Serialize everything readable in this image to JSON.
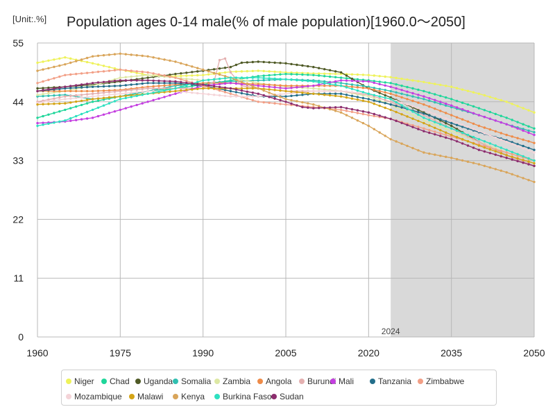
{
  "header": {
    "unit": "[Unit:.%]",
    "title": "Population ages 0-14 male(% of male population)[1960.0～2050]"
  },
  "chart_data": {
    "type": "line",
    "title": "Population ages 0-14 male(% of male population)[1960.0～2050]",
    "unit": "%",
    "xlim": [
      1960,
      2050
    ],
    "ylim": [
      0,
      55
    ],
    "x_ticks": [
      1960,
      1975,
      1990,
      2005,
      2020,
      2035,
      2050
    ],
    "y_ticks": [
      0,
      11,
      22,
      33,
      44,
      55
    ],
    "grid": true,
    "projection_start": 2024,
    "projection_label": "2024",
    "projection_shading_color": "#d9d9d9",
    "series": [
      {
        "name": "Niger",
        "color": "#eef25a",
        "points": [
          [
            1960,
            51.3
          ],
          [
            1965,
            52.3
          ],
          [
            1970,
            51.2
          ],
          [
            1975,
            50.0
          ],
          [
            1980,
            49.0
          ],
          [
            1985,
            48.8
          ],
          [
            1990,
            49.0
          ],
          [
            1995,
            49.6
          ],
          [
            2000,
            49.8
          ],
          [
            2005,
            49.5
          ],
          [
            2010,
            49.3
          ],
          [
            2015,
            49.2
          ],
          [
            2020,
            49.0
          ],
          [
            2024,
            48.6
          ],
          [
            2030,
            47.7
          ],
          [
            2035,
            46.8
          ],
          [
            2040,
            45.5
          ],
          [
            2045,
            44.0
          ],
          [
            2050,
            42.0
          ]
        ]
      },
      {
        "name": "Chad",
        "color": "#1fd69a",
        "points": [
          [
            1960,
            41.0
          ],
          [
            1965,
            42.5
          ],
          [
            1970,
            44.0
          ],
          [
            1975,
            45.0
          ],
          [
            1980,
            46.0
          ],
          [
            1985,
            46.5
          ],
          [
            1990,
            47.2
          ],
          [
            1995,
            48.0
          ],
          [
            2000,
            48.8
          ],
          [
            2005,
            49.2
          ],
          [
            2010,
            49.0
          ],
          [
            2015,
            48.5
          ],
          [
            2020,
            48.0
          ],
          [
            2024,
            47.5
          ],
          [
            2030,
            46.0
          ],
          [
            2035,
            44.5
          ],
          [
            2040,
            42.8
          ],
          [
            2045,
            41.0
          ],
          [
            2050,
            39.0
          ]
        ]
      },
      {
        "name": "Uganda",
        "color": "#4f5a26",
        "points": [
          [
            1960,
            46.5
          ],
          [
            1965,
            46.8
          ],
          [
            1970,
            47.2
          ],
          [
            1975,
            47.8
          ],
          [
            1980,
            48.5
          ],
          [
            1985,
            49.2
          ],
          [
            1990,
            49.8
          ],
          [
            1995,
            50.5
          ],
          [
            1997,
            51.3
          ],
          [
            2000,
            51.5
          ],
          [
            2005,
            51.2
          ],
          [
            2010,
            50.5
          ],
          [
            2015,
            49.5
          ],
          [
            2020,
            46.5
          ],
          [
            2024,
            44.8
          ],
          [
            2030,
            42.0
          ],
          [
            2035,
            39.5
          ],
          [
            2040,
            36.5
          ],
          [
            2045,
            34.0
          ],
          [
            2050,
            32.0
          ]
        ]
      },
      {
        "name": "Somalia",
        "color": "#30bfb0",
        "points": [
          [
            1960,
            45.0
          ],
          [
            1965,
            45.3
          ],
          [
            1970,
            44.5
          ],
          [
            1975,
            45.0
          ],
          [
            1980,
            46.0
          ],
          [
            1985,
            47.0
          ],
          [
            1990,
            47.5
          ],
          [
            1995,
            47.8
          ],
          [
            2000,
            48.0
          ],
          [
            2005,
            48.2
          ],
          [
            2010,
            48.0
          ],
          [
            2015,
            47.5
          ],
          [
            2020,
            46.8
          ],
          [
            2024,
            46.0
          ],
          [
            2030,
            44.5
          ],
          [
            2035,
            43.0
          ],
          [
            2040,
            41.5
          ],
          [
            2045,
            39.8
          ],
          [
            2050,
            38.3
          ]
        ]
      },
      {
        "name": "Zambia",
        "color": "#dde8a4",
        "points": [
          [
            1960,
            45.3
          ],
          [
            1965,
            46.0
          ],
          [
            1970,
            47.0
          ],
          [
            1975,
            48.5
          ],
          [
            1980,
            49.0
          ],
          [
            1985,
            48.5
          ],
          [
            1990,
            48.0
          ],
          [
            1995,
            48.5
          ],
          [
            2000,
            47.5
          ],
          [
            2005,
            46.8
          ],
          [
            2010,
            46.5
          ],
          [
            2015,
            46.0
          ],
          [
            2020,
            45.0
          ],
          [
            2024,
            43.5
          ],
          [
            2030,
            40.5
          ],
          [
            2035,
            38.5
          ],
          [
            2040,
            36.5
          ],
          [
            2045,
            34.5
          ],
          [
            2050,
            33.0
          ]
        ]
      },
      {
        "name": "Angola",
        "color": "#ee8b48",
        "points": [
          [
            1960,
            46.0
          ],
          [
            1965,
            46.0
          ],
          [
            1970,
            46.0
          ],
          [
            1975,
            46.2
          ],
          [
            1980,
            46.8
          ],
          [
            1985,
            47.2
          ],
          [
            1990,
            47.5
          ],
          [
            1995,
            47.5
          ],
          [
            2000,
            47.3
          ],
          [
            2005,
            47.0
          ],
          [
            2010,
            47.0
          ],
          [
            2015,
            47.0
          ],
          [
            2020,
            46.5
          ],
          [
            2024,
            45.5
          ],
          [
            2030,
            43.5
          ],
          [
            2035,
            41.5
          ],
          [
            2040,
            39.5
          ],
          [
            2045,
            37.8
          ],
          [
            2050,
            36.3
          ]
        ]
      },
      {
        "name": "Burundi",
        "color": "#e4b0b0",
        "points": [
          [
            1960,
            44.0
          ],
          [
            1965,
            45.0
          ],
          [
            1970,
            45.5
          ],
          [
            1975,
            46.0
          ],
          [
            1980,
            46.5
          ],
          [
            1985,
            46.5
          ],
          [
            1990,
            46.5
          ],
          [
            1992,
            47.8
          ],
          [
            1993,
            51.8
          ],
          [
            1994,
            52.1
          ],
          [
            1995,
            49.5
          ],
          [
            1997,
            47.0
          ],
          [
            2000,
            46.5
          ],
          [
            2005,
            46.0
          ],
          [
            2010,
            46.0
          ],
          [
            2015,
            46.0
          ],
          [
            2020,
            45.3
          ],
          [
            2024,
            44.0
          ],
          [
            2030,
            41.5
          ],
          [
            2035,
            39.0
          ],
          [
            2040,
            36.5
          ],
          [
            2045,
            34.0
          ],
          [
            2050,
            32.0
          ]
        ]
      },
      {
        "name": "Mali",
        "color": "#c43ee0",
        "points": [
          [
            1960,
            40.0
          ],
          [
            1965,
            40.3
          ],
          [
            1970,
            41.0
          ],
          [
            1975,
            42.5
          ],
          [
            1980,
            44.0
          ],
          [
            1985,
            45.5
          ],
          [
            1990,
            47.0
          ],
          [
            1995,
            47.5
          ],
          [
            2000,
            47.0
          ],
          [
            2005,
            46.5
          ],
          [
            2010,
            47.0
          ],
          [
            2015,
            48.0
          ],
          [
            2020,
            47.8
          ],
          [
            2024,
            46.8
          ],
          [
            2030,
            45.0
          ],
          [
            2035,
            43.3
          ],
          [
            2040,
            41.5
          ],
          [
            2045,
            39.8
          ],
          [
            2050,
            37.8
          ]
        ]
      },
      {
        "name": "Tanzania",
        "color": "#236e8a",
        "points": [
          [
            1960,
            46.0
          ],
          [
            1965,
            46.5
          ],
          [
            1970,
            46.8
          ],
          [
            1975,
            47.0
          ],
          [
            1980,
            47.5
          ],
          [
            1985,
            47.5
          ],
          [
            1990,
            47.0
          ],
          [
            1995,
            46.0
          ],
          [
            2000,
            45.0
          ],
          [
            2005,
            45.0
          ],
          [
            2010,
            45.5
          ],
          [
            2015,
            45.5
          ],
          [
            2020,
            44.5
          ],
          [
            2024,
            43.5
          ],
          [
            2030,
            41.8
          ],
          [
            2035,
            40.0
          ],
          [
            2040,
            38.3
          ],
          [
            2045,
            36.8
          ],
          [
            2050,
            35.0
          ]
        ]
      },
      {
        "name": "Zimbabwe",
        "color": "#f29f86",
        "points": [
          [
            1960,
            47.5
          ],
          [
            1965,
            49.0
          ],
          [
            1970,
            49.5
          ],
          [
            1975,
            50.0
          ],
          [
            1980,
            49.5
          ],
          [
            1985,
            48.5
          ],
          [
            1990,
            47.0
          ],
          [
            1995,
            45.5
          ],
          [
            2000,
            44.0
          ],
          [
            2005,
            43.5
          ],
          [
            2010,
            43.0
          ],
          [
            2015,
            42.5
          ],
          [
            2020,
            41.5
          ],
          [
            2024,
            40.8
          ],
          [
            2030,
            39.0
          ],
          [
            2035,
            37.5
          ],
          [
            2040,
            36.0
          ],
          [
            2045,
            34.5
          ],
          [
            2050,
            33.0
          ]
        ]
      },
      {
        "name": "Mozambique",
        "color": "#f4d4d8",
        "points": [
          [
            1960,
            43.8
          ],
          [
            1965,
            44.5
          ],
          [
            1970,
            45.0
          ],
          [
            1975,
            45.5
          ],
          [
            1980,
            46.0
          ],
          [
            1985,
            46.0
          ],
          [
            1990,
            45.5
          ],
          [
            1995,
            45.0
          ],
          [
            2000,
            45.0
          ],
          [
            2005,
            45.5
          ],
          [
            2010,
            46.0
          ],
          [
            2015,
            46.0
          ],
          [
            2020,
            45.5
          ],
          [
            2024,
            44.5
          ],
          [
            2030,
            42.5
          ],
          [
            2035,
            40.5
          ],
          [
            2040,
            38.5
          ],
          [
            2045,
            36.5
          ],
          [
            2050,
            34.5
          ]
        ]
      },
      {
        "name": "Malawi",
        "color": "#d4a415",
        "points": [
          [
            1960,
            43.5
          ],
          [
            1965,
            43.7
          ],
          [
            1970,
            44.5
          ],
          [
            1975,
            45.0
          ],
          [
            1980,
            45.5
          ],
          [
            1985,
            46.0
          ],
          [
            1990,
            46.5
          ],
          [
            1995,
            46.5
          ],
          [
            2000,
            46.5
          ],
          [
            2005,
            46.0
          ],
          [
            2010,
            45.5
          ],
          [
            2015,
            45.0
          ],
          [
            2020,
            44.0
          ],
          [
            2024,
            42.5
          ],
          [
            2030,
            40.0
          ],
          [
            2035,
            37.8
          ],
          [
            2040,
            35.8
          ],
          [
            2045,
            34.0
          ],
          [
            2050,
            32.5
          ]
        ]
      },
      {
        "name": "Kenya",
        "color": "#d9a55a",
        "points": [
          [
            1960,
            49.8
          ],
          [
            1965,
            51.0
          ],
          [
            1970,
            52.5
          ],
          [
            1975,
            53.0
          ],
          [
            1980,
            52.5
          ],
          [
            1985,
            51.5
          ],
          [
            1990,
            50.0
          ],
          [
            1995,
            48.5
          ],
          [
            2000,
            46.5
          ],
          [
            2005,
            44.5
          ],
          [
            2010,
            43.5
          ],
          [
            2015,
            42.0
          ],
          [
            2020,
            39.5
          ],
          [
            2024,
            37.0
          ],
          [
            2030,
            34.5
          ],
          [
            2035,
            33.5
          ],
          [
            2040,
            32.3
          ],
          [
            2045,
            30.8
          ],
          [
            2050,
            29.0
          ]
        ]
      },
      {
        "name": "Burkina Faso",
        "color": "#2ee0c0",
        "points": [
          [
            1960,
            39.5
          ],
          [
            1965,
            40.5
          ],
          [
            1970,
            42.5
          ],
          [
            1975,
            44.5
          ],
          [
            1980,
            45.5
          ],
          [
            1985,
            46.5
          ],
          [
            1990,
            48.0
          ],
          [
            1995,
            48.5
          ],
          [
            2000,
            48.5
          ],
          [
            2005,
            48.2
          ],
          [
            2010,
            47.8
          ],
          [
            2015,
            47.0
          ],
          [
            2020,
            45.5
          ],
          [
            2024,
            44.5
          ],
          [
            2030,
            41.0
          ],
          [
            2035,
            39.0
          ],
          [
            2040,
            37.0
          ],
          [
            2045,
            35.0
          ],
          [
            2050,
            33.0
          ]
        ]
      },
      {
        "name": "Sudan",
        "color": "#8c2d6e",
        "points": [
          [
            1960,
            46.0
          ],
          [
            1965,
            46.8
          ],
          [
            1970,
            47.5
          ],
          [
            1975,
            48.0
          ],
          [
            1980,
            48.0
          ],
          [
            1985,
            47.8
          ],
          [
            1990,
            47.2
          ],
          [
            1995,
            46.5
          ],
          [
            2000,
            45.5
          ],
          [
            2005,
            44.0
          ],
          [
            2008,
            43.0
          ],
          [
            2010,
            42.8
          ],
          [
            2015,
            43.0
          ],
          [
            2020,
            42.0
          ],
          [
            2024,
            40.8
          ],
          [
            2030,
            38.5
          ],
          [
            2035,
            37.0
          ],
          [
            2040,
            35.0
          ],
          [
            2045,
            33.5
          ],
          [
            2050,
            32.0
          ]
        ]
      }
    ]
  }
}
